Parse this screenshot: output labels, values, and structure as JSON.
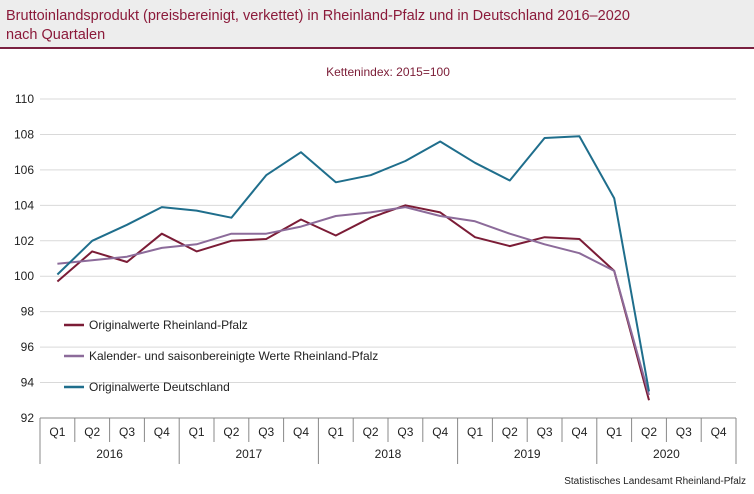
{
  "header": {
    "title_line1": "Bruttoinlandsprodukt (preisbereinigt, verkettet) in Rheinland-Pfalz und in Deutschland 2016–2020",
    "title_line2": "nach Quartalen"
  },
  "footer": {
    "source": "Statistisches Landesamt Rheinland-Pfalz"
  },
  "colors": {
    "title": "#8b1a3a",
    "rule": "#7a2040",
    "header_bg": "#ededed",
    "grid": "#d9d9d9",
    "axis": "#888888"
  },
  "chart_data": {
    "type": "line",
    "subtitle": "Kettenindex: 2015=100",
    "ylim": [
      92,
      110
    ],
    "yticks": [
      92,
      94,
      96,
      98,
      100,
      102,
      104,
      106,
      108,
      110
    ],
    "categories": [
      "Q1",
      "Q2",
      "Q3",
      "Q4",
      "Q1",
      "Q2",
      "Q3",
      "Q4",
      "Q1",
      "Q2",
      "Q3",
      "Q4",
      "Q1",
      "Q2",
      "Q3",
      "Q4",
      "Q1",
      "Q2",
      "Q3",
      "Q4"
    ],
    "years": [
      "2016",
      "2017",
      "2018",
      "2019",
      "2020"
    ],
    "series": [
      {
        "name": "Originalwerte Rheinland-Pfalz",
        "color": "#7b1c36",
        "values": [
          99.7,
          101.4,
          100.8,
          102.4,
          101.4,
          102.0,
          102.1,
          103.2,
          102.3,
          103.3,
          104.0,
          103.6,
          102.2,
          101.7,
          102.2,
          102.1,
          100.3,
          93.0,
          null,
          null
        ]
      },
      {
        "name": "Kalender- und saisonbereinigte Werte Rheinland-Pfalz",
        "color": "#8c6b9a",
        "values": [
          100.7,
          100.9,
          101.1,
          101.6,
          101.8,
          102.4,
          102.4,
          102.8,
          103.4,
          103.6,
          103.9,
          103.4,
          103.1,
          102.4,
          101.8,
          101.3,
          100.3,
          93.3,
          null,
          null
        ]
      },
      {
        "name": "Originalwerte Deutschland",
        "color": "#1f6e8c",
        "values": [
          100.1,
          102.0,
          102.9,
          103.9,
          103.7,
          103.3,
          105.7,
          107.0,
          105.3,
          105.7,
          106.5,
          107.6,
          106.4,
          105.4,
          107.8,
          107.9,
          104.4,
          93.5,
          null,
          null
        ]
      }
    ]
  }
}
